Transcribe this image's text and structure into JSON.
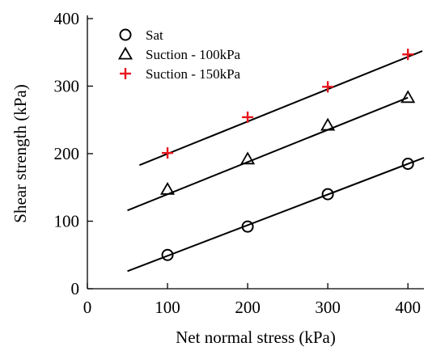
{
  "chart_data": {
    "type": "scatter",
    "xlabel": "Net normal stress (kPa)",
    "ylabel": "Shear strength (kPa)",
    "xlim": [
      0,
      420
    ],
    "ylim": [
      0,
      400
    ],
    "xticks": [
      0,
      100,
      200,
      300,
      400
    ],
    "yticks": [
      0,
      100,
      200,
      300,
      400
    ],
    "grid": false,
    "legend_position": "top-left",
    "series": [
      {
        "name": "Sat",
        "marker": "circle",
        "color": "#000000",
        "x": [
          100,
          200,
          300,
          400
        ],
        "y": [
          50,
          92,
          140,
          185
        ],
        "fit_line": {
          "x": [
            50,
            420
          ],
          "y": [
            26,
            194
          ]
        }
      },
      {
        "name": "Suction - 100kPa",
        "marker": "triangle",
        "color": "#000000",
        "x": [
          100,
          200,
          300,
          400
        ],
        "y": [
          147,
          192,
          242,
          283
        ],
        "fit_line": {
          "x": [
            50,
            400
          ],
          "y": [
            116,
            283
          ]
        }
      },
      {
        "name": "Suction - 150kPa",
        "marker": "plus",
        "color": "#e8141c",
        "x": [
          100,
          200,
          300,
          400
        ],
        "y": [
          201,
          254,
          299,
          347
        ],
        "fit_line": {
          "x": [
            65,
            418
          ],
          "y": [
            183,
            352
          ]
        }
      }
    ]
  }
}
